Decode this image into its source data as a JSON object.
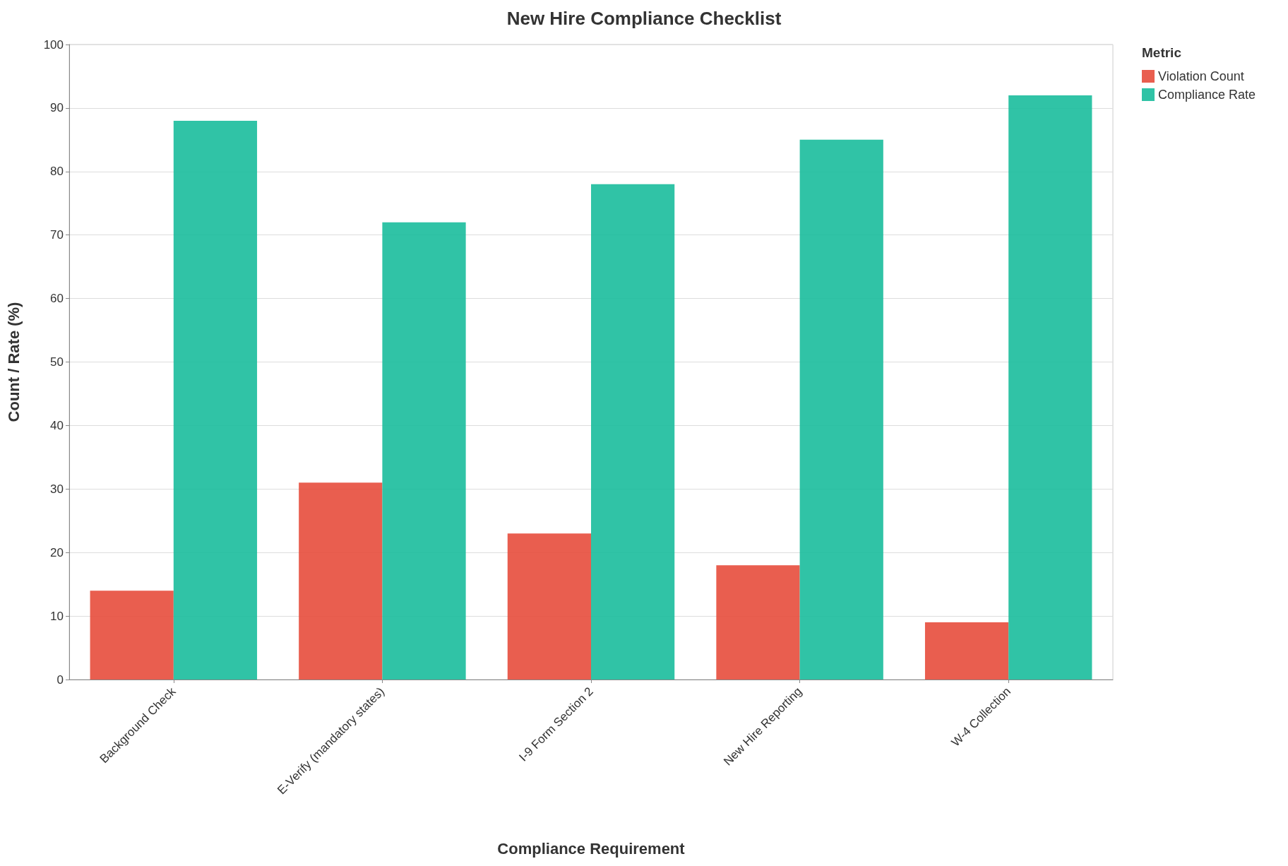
{
  "chart_data": {
    "type": "bar",
    "title": "New Hire Compliance Checklist",
    "xlabel": "Compliance Requirement",
    "ylabel": "Count / Rate (%)",
    "legend_title": "Metric",
    "categories": [
      "Background Check",
      "E-Verify (mandatory states)",
      "I-9 Form Section 2",
      "New Hire Reporting",
      "W-4 Collection"
    ],
    "series": [
      {
        "name": "Violation Count",
        "color": "#e74c3c",
        "values": [
          14,
          31,
          23,
          18,
          9
        ]
      },
      {
        "name": "Compliance Rate",
        "color": "#1abc9c",
        "values": [
          88,
          72,
          78,
          85,
          92
        ]
      }
    ],
    "ylim": [
      0,
      100
    ],
    "yticks": [
      0,
      10,
      20,
      30,
      40,
      50,
      60,
      70,
      80,
      90,
      100
    ],
    "grid": "y",
    "legend": "top right"
  }
}
